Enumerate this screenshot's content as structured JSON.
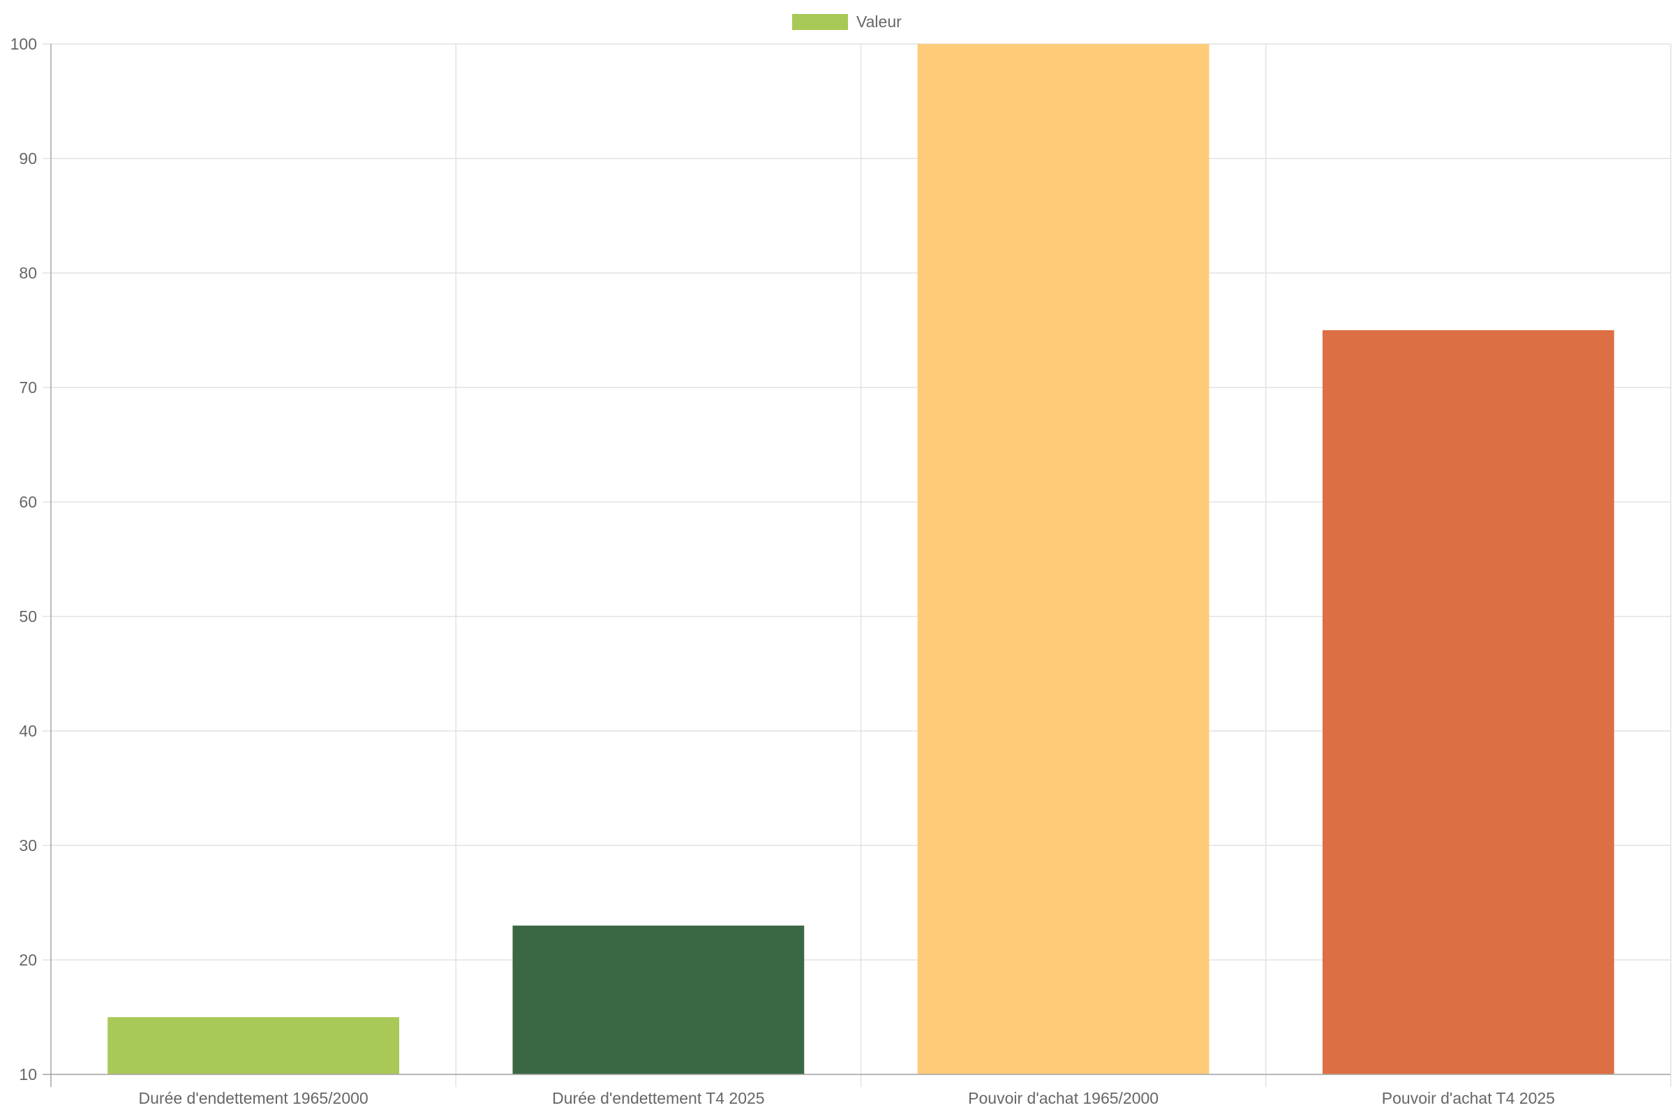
{
  "chart_data": {
    "type": "bar",
    "categories": [
      "Durée d'endettement 1965/2000",
      "Durée d'endettement T4 2025",
      "Pouvoir d'achat 1965/2000",
      "Pouvoir d'achat T4 2025"
    ],
    "series": [
      {
        "name": "Valeur",
        "values": [
          15,
          23,
          100,
          75
        ],
        "colors": [
          "#a8c858",
          "#3a6845",
          "#fecb79",
          "#dd6f44"
        ]
      }
    ],
    "legend": {
      "position": "top-center",
      "items": [
        {
          "label": "Valeur",
          "color": "#a8c858"
        }
      ]
    },
    "y_ticks": [
      "10",
      "20",
      "30",
      "40",
      "50",
      "60",
      "70",
      "80",
      "90",
      "100"
    ],
    "ylim": [
      10,
      100
    ],
    "grid": true,
    "title": "",
    "xlabel": "",
    "ylabel": ""
  }
}
